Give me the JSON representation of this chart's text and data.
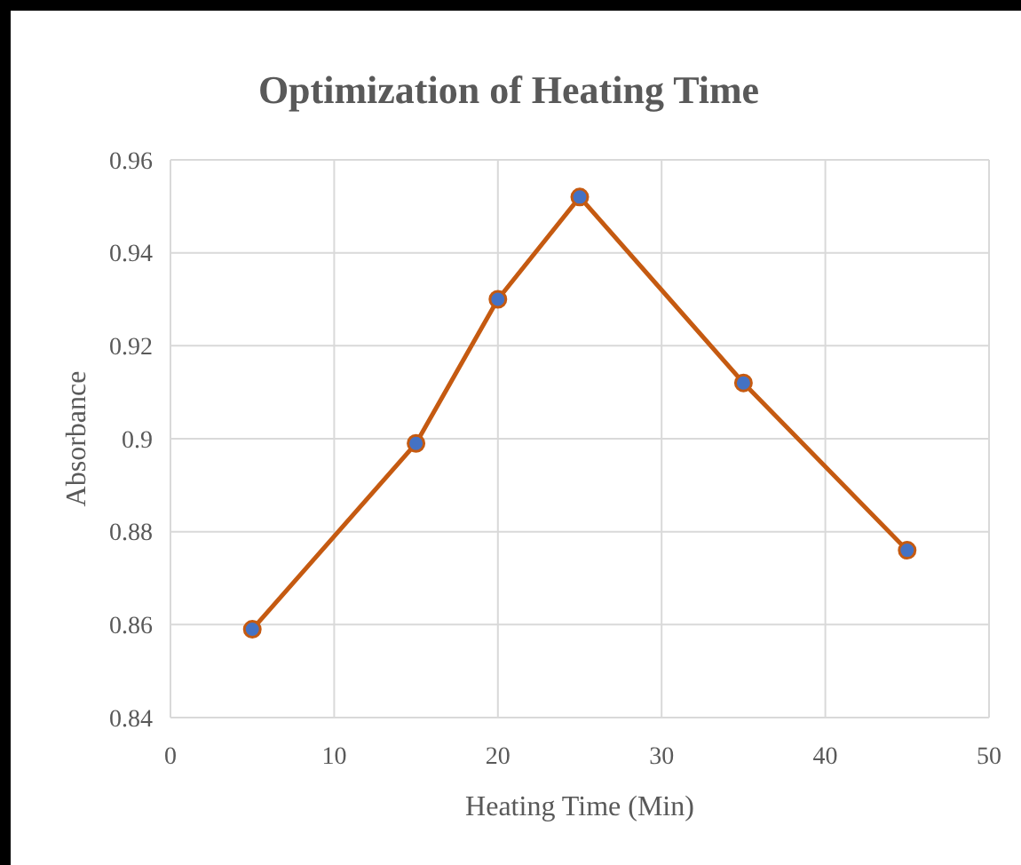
{
  "chart_data": {
    "type": "line",
    "title": "Optimization of Heating Time",
    "xlabel": "Heating Time (Min)",
    "ylabel": "Absorbance",
    "x": [
      5,
      15,
      20,
      25,
      35,
      45
    ],
    "series": [
      {
        "color": "#c55a11",
        "values": [
          0.859,
          0.899,
          0.93,
          0.952,
          0.912,
          0.876
        ]
      }
    ],
    "xlim": [
      0,
      50
    ],
    "xticks": [
      0,
      10,
      20,
      30,
      40,
      50
    ],
    "ylim": [
      0.84,
      0.96
    ],
    "yticks": [
      0.84,
      0.86,
      0.88,
      0.9,
      0.92,
      0.94,
      0.96
    ],
    "grid": true,
    "marker": "circle",
    "line_style": "solid"
  }
}
